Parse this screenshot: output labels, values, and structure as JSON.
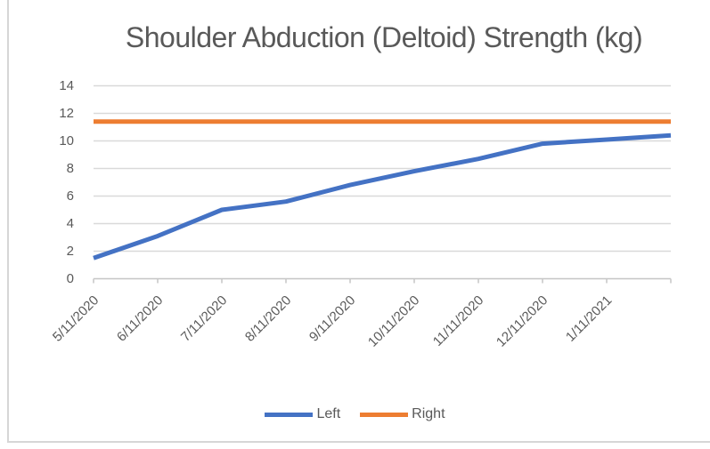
{
  "chart_data": {
    "type": "line",
    "title": "Shoulder Abduction (Deltoid) Strength (kg)",
    "categories": [
      "5/11/2020",
      "6/11/2020",
      "7/11/2020",
      "8/11/2020",
      "9/11/2020",
      "10/11/2020",
      "11/11/2020",
      "12/11/2020",
      "1/11/2021",
      ""
    ],
    "series": [
      {
        "name": "Left",
        "color": "#4472C4",
        "values": [
          1.5,
          3.1,
          5.0,
          5.6,
          6.8,
          7.8,
          8.7,
          9.8,
          10.1,
          10.4
        ]
      },
      {
        "name": "Right",
        "color": "#ED7D31",
        "values": [
          11.4,
          11.4,
          11.4,
          11.4,
          11.4,
          11.4,
          11.4,
          11.4,
          11.4,
          11.4
        ]
      }
    ],
    "xlabel": "",
    "ylabel": "",
    "ylim": [
      0,
      14
    ],
    "yticks": [
      0,
      2,
      4,
      6,
      8,
      10,
      12,
      14
    ],
    "grid": true,
    "x_label_rotation": 45,
    "legend_position": "bottom"
  },
  "colors": {
    "grid": "#d9d9d9",
    "axis": "#c6c6c6",
    "tick": "#c6c6c6",
    "text": "#595959",
    "frame_border": "#d6d6d6",
    "background": "#ffffff"
  }
}
